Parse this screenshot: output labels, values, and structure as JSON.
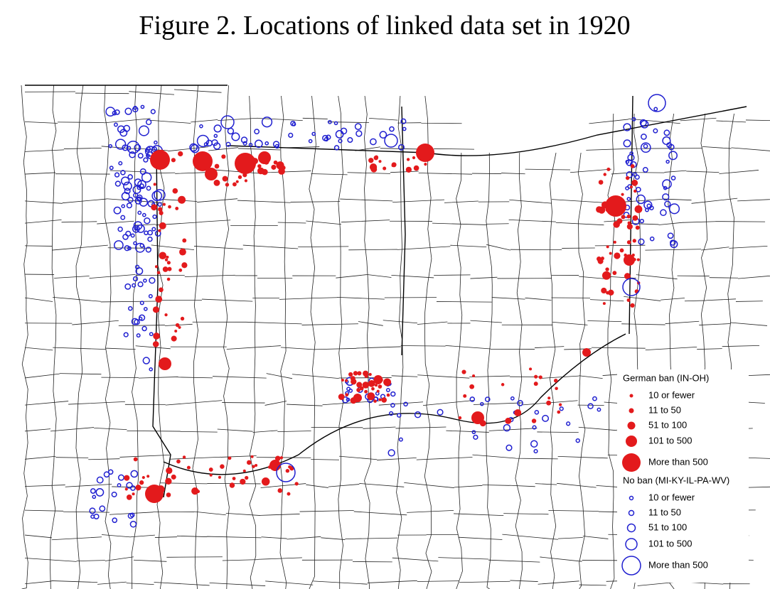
{
  "title": "Figure 2. Locations of linked data set in 1920",
  "legend": {
    "groups": [
      {
        "title": "German ban (IN-OH)",
        "items": [
          "10 or fewer",
          "11 to 50",
          "51 to 100",
          "101 to 500",
          "More than 500"
        ]
      },
      {
        "title": "No ban (MI-KY-IL-PA-WV)",
        "items": [
          "10 or fewer",
          "11 to 50",
          "51 to 100",
          "101 to 500",
          "More than 500"
        ]
      }
    ]
  }
}
